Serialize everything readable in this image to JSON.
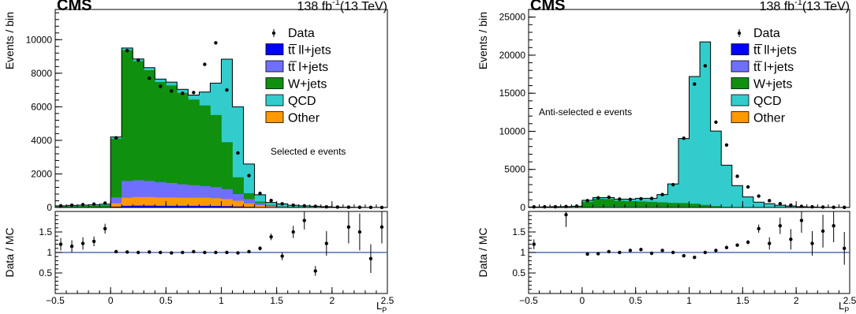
{
  "colors": {
    "tt_ll_jets": "#0000ff",
    "tt_l_jets": "#6f6fff",
    "w_jets": "#0f900f",
    "qcd": "#33cccc",
    "other": "#ff9900",
    "data": "#000000",
    "ratio_line": "#3050a0"
  },
  "chart_data": [
    {
      "type": "bar",
      "stacked": true,
      "experiment": "CMS",
      "lumi_label": "138 fb",
      "lumi_superscript": "-1",
      "energy_label": "(13 TeV)",
      "annotation": "Selected e events",
      "annotation_position": "right-middle",
      "xlabel": "L_P",
      "ylabel": "Events / bin",
      "ratio_ylabel": "Data / MC",
      "legend_position": "top-right",
      "legend": [
        "Data",
        "tt̅ ll+jets",
        "tt̅ l+jets",
        "W+jets",
        "QCD",
        "Other"
      ],
      "xlim": [
        -0.5,
        2.5
      ],
      "ylim": [
        0,
        11800
      ],
      "ratio_ylim": [
        0,
        2.0
      ],
      "x_ticks": [
        "−0.5",
        "0",
        "0.5",
        "1",
        "1.5",
        "2",
        "2.5"
      ],
      "x_tick_values": [
        -0.5,
        0,
        0.5,
        1,
        1.5,
        2,
        2.5
      ],
      "y_ticks": [
        "0",
        "2000",
        "4000",
        "6000",
        "8000",
        "10000"
      ],
      "y_tick_values": [
        0,
        2000,
        4000,
        6000,
        8000,
        10000
      ],
      "ratio_ticks": [
        "0.5",
        "1",
        "1.5"
      ],
      "ratio_tick_values": [
        0.5,
        1,
        1.5
      ],
      "bin_edges": [
        -0.5,
        -0.4,
        -0.3,
        -0.2,
        -0.1,
        0,
        0.1,
        0.2,
        0.3,
        0.4,
        0.5,
        0.6,
        0.7,
        0.8,
        0.9,
        1.0,
        1.1,
        1.2,
        1.3,
        1.4,
        1.5,
        1.6,
        1.7,
        1.8,
        1.9,
        2.0,
        2.1,
        2.2,
        2.3,
        2.4,
        2.5
      ],
      "series": [
        {
          "name": "tt̅ ll+jets",
          "color_key": "tt_ll_jets",
          "values": [
            0,
            0,
            0,
            0,
            0,
            50,
            100,
            110,
            110,
            100,
            100,
            100,
            100,
            100,
            90,
            80,
            60,
            40,
            20,
            10,
            5,
            3,
            2,
            1,
            1,
            0,
            0,
            0,
            0,
            0
          ]
        },
        {
          "name": "Other",
          "color_key": "other",
          "values": [
            0,
            0,
            0,
            0,
            0,
            200,
            480,
            510,
            510,
            500,
            500,
            480,
            480,
            480,
            460,
            420,
            340,
            200,
            120,
            60,
            30,
            15,
            10,
            8,
            5,
            3,
            2,
            1,
            1,
            0
          ]
        },
        {
          "name": "tt̅ l+jets",
          "color_key": "tt_l_jets",
          "values": [
            0,
            0,
            0,
            0,
            0,
            350,
            1000,
            1000,
            960,
            910,
            860,
            800,
            750,
            700,
            660,
            590,
            400,
            260,
            120,
            50,
            20,
            8,
            4,
            2,
            1,
            0,
            0,
            0,
            0,
            0
          ]
        },
        {
          "name": "W+jets",
          "color_key": "w_jets",
          "values": [
            60,
            80,
            80,
            100,
            130,
            3500,
            7800,
            7100,
            6600,
            5970,
            5810,
            5450,
            5100,
            4800,
            4300,
            2800,
            1000,
            350,
            90,
            30,
            15,
            8,
            5,
            3,
            2,
            1,
            1,
            0,
            0,
            0
          ]
        },
        {
          "name": "QCD",
          "color_key": "qcd",
          "values": [
            40,
            50,
            60,
            60,
            70,
            100,
            120,
            130,
            150,
            170,
            200,
            210,
            270,
            800,
            1900,
            4950,
            4200,
            1740,
            410,
            150,
            150,
            100,
            80,
            60,
            40,
            20,
            15,
            8,
            5,
            3
          ]
        }
      ],
      "data": {
        "name": "Data",
        "x": [
          -0.45,
          -0.35,
          -0.25,
          -0.15,
          -0.05,
          0.05,
          0.15,
          0.25,
          0.35,
          0.45,
          0.55,
          0.65,
          0.75,
          0.85,
          0.95,
          1.05,
          1.15,
          1.25,
          1.35,
          1.45,
          1.55,
          1.65,
          1.75,
          1.85,
          1.95,
          2.05,
          2.15,
          2.25,
          2.35,
          2.45
        ],
        "values": [
          100,
          140,
          170,
          200,
          260,
          4150,
          9350,
          8780,
          7700,
          7220,
          6940,
          6800,
          6850,
          8530,
          9810,
          7000,
          3250,
          1900,
          840,
          420,
          220,
          140,
          100,
          70,
          40,
          25,
          20,
          12,
          8,
          4
        ]
      },
      "ratio": {
        "x": [
          -0.45,
          -0.35,
          -0.25,
          -0.15,
          -0.05,
          0.05,
          0.15,
          0.25,
          0.35,
          0.45,
          0.55,
          0.65,
          0.75,
          0.85,
          0.95,
          1.05,
          1.15,
          1.25,
          1.35,
          1.45,
          1.55,
          1.65,
          1.75,
          1.85,
          1.95,
          2.15,
          2.25,
          2.35,
          2.45
        ],
        "values": [
          1.2,
          1.15,
          1.22,
          1.27,
          1.58,
          1.02,
          1.01,
          1.0,
          1.01,
          1.0,
          0.99,
          1.0,
          1.02,
          1.0,
          1.0,
          1.0,
          0.99,
          1.02,
          1.1,
          1.38,
          0.91,
          1.5,
          1.78,
          0.55,
          1.22,
          1.62,
          1.5,
          0.85,
          1.62
        ],
        "errors": [
          0.15,
          0.15,
          0.15,
          0.12,
          0.12,
          0.02,
          0.01,
          0.01,
          0.01,
          0.01,
          0.01,
          0.01,
          0.01,
          0.01,
          0.01,
          0.01,
          0.02,
          0.03,
          0.05,
          0.08,
          0.1,
          0.15,
          0.22,
          0.12,
          0.3,
          0.4,
          0.45,
          0.35,
          0.4
        ]
      }
    },
    {
      "type": "bar",
      "stacked": true,
      "experiment": "CMS",
      "lumi_label": "138 fb",
      "lumi_superscript": "-1",
      "energy_label": "(13 TeV)",
      "annotation": "Anti-selected e events",
      "annotation_position": "left-middle",
      "xlabel": "L_P",
      "ylabel": "Events / bin",
      "ratio_ylabel": "Data / MC",
      "legend_position": "top-right",
      "legend": [
        "Data",
        "tt̅ ll+jets",
        "tt̅ l+jets",
        "W+jets",
        "QCD",
        "Other"
      ],
      "xlim": [
        -0.5,
        2.5
      ],
      "ylim": [
        0,
        26000
      ],
      "ratio_ylim": [
        0,
        2.0
      ],
      "x_ticks": [
        "−0.5",
        "0",
        "0.5",
        "1",
        "1.5",
        "2",
        "2.5"
      ],
      "x_tick_values": [
        -0.5,
        0,
        0.5,
        1,
        1.5,
        2,
        2.5
      ],
      "y_ticks": [
        "0",
        "5000",
        "10000",
        "15000",
        "20000",
        "25000"
      ],
      "y_tick_values": [
        0,
        5000,
        10000,
        15000,
        20000,
        25000
      ],
      "ratio_ticks": [
        "0.5",
        "1",
        "1.5"
      ],
      "ratio_tick_values": [
        0.5,
        1,
        1.5
      ],
      "bin_edges": [
        -0.5,
        -0.4,
        -0.3,
        -0.2,
        -0.1,
        0,
        0.1,
        0.2,
        0.3,
        0.4,
        0.5,
        0.6,
        0.7,
        0.8,
        0.9,
        1.0,
        1.1,
        1.2,
        1.3,
        1.4,
        1.5,
        1.6,
        1.7,
        1.8,
        1.9,
        2.0,
        2.1,
        2.2,
        2.3,
        2.4,
        2.5
      ],
      "series": [
        {
          "name": "tt̅ ll+jets",
          "color_key": "tt_ll_jets",
          "values": [
            0,
            0,
            0,
            0,
            0,
            2,
            5,
            5,
            5,
            5,
            5,
            5,
            5,
            5,
            5,
            5,
            5,
            3,
            2,
            1,
            0,
            0,
            0,
            0,
            0,
            0,
            0,
            0,
            0,
            0
          ]
        },
        {
          "name": "Other",
          "color_key": "other",
          "values": [
            0,
            0,
            0,
            0,
            0,
            10,
            25,
            30,
            30,
            30,
            30,
            30,
            30,
            30,
            30,
            30,
            30,
            20,
            10,
            5,
            2,
            1,
            0,
            0,
            0,
            0,
            0,
            0,
            0,
            0
          ]
        },
        {
          "name": "tt̅ l+jets",
          "color_key": "tt_l_jets",
          "values": [
            0,
            0,
            0,
            0,
            0,
            20,
            60,
            60,
            60,
            60,
            60,
            55,
            50,
            50,
            50,
            45,
            40,
            25,
            10,
            5,
            2,
            1,
            0,
            0,
            0,
            0,
            0,
            0,
            0,
            0
          ]
        },
        {
          "name": "W+jets",
          "color_key": "w_jets",
          "values": [
            20,
            20,
            30,
            40,
            60,
            700,
            1050,
            1010,
            780,
            730,
            700,
            650,
            590,
            520,
            500,
            420,
            260,
            120,
            60,
            20,
            10,
            5,
            3,
            2,
            1,
            0,
            0,
            0,
            0,
            0
          ]
        },
        {
          "name": "QCD",
          "color_key": "qcd",
          "values": [
            50,
            60,
            70,
            80,
            110,
            218,
            160,
            195,
            225,
            275,
            405,
            460,
            1025,
            2495,
            8465,
            16695,
            21405,
            9867,
            5478,
            2839,
            1366,
            693,
            497,
            298,
            199,
            100,
            60,
            40,
            20,
            10
          ]
        }
      ],
      "data": {
        "name": "Data",
        "x": [
          -0.45,
          -0.35,
          -0.25,
          -0.15,
          -0.05,
          0.05,
          0.15,
          0.25,
          0.35,
          0.45,
          0.55,
          0.65,
          0.75,
          0.85,
          0.95,
          1.05,
          1.15,
          1.25,
          1.35,
          1.45,
          1.55,
          1.65,
          1.75,
          1.85,
          1.95,
          2.05,
          2.15,
          2.25,
          2.35,
          2.45
        ],
        "values": [
          80,
          90,
          100,
          120,
          180,
          900,
          1260,
          1350,
          1100,
          1060,
          1150,
          1180,
          1700,
          3000,
          9100,
          16200,
          18600,
          11200,
          8200,
          4100,
          2700,
          1500,
          900,
          500,
          300,
          150,
          90,
          60,
          35,
          15
        ]
      },
      "ratio": {
        "x": [
          -0.45,
          -0.15,
          0.05,
          0.15,
          0.25,
          0.35,
          0.45,
          0.55,
          0.65,
          0.75,
          0.85,
          0.95,
          1.05,
          1.15,
          1.25,
          1.35,
          1.45,
          1.55,
          1.65,
          1.75,
          1.85,
          1.95,
          2.05,
          2.15,
          2.25,
          2.35,
          2.45
        ],
        "values": [
          1.2,
          1.92,
          0.96,
          0.97,
          1.02,
          1.0,
          1.05,
          1.07,
          0.98,
          1.05,
          1.0,
          0.92,
          0.88,
          1.0,
          1.05,
          1.12,
          1.18,
          1.25,
          1.58,
          1.22,
          1.65,
          1.32,
          1.78,
          1.22,
          1.52,
          1.65,
          1.1
        ],
        "errors": [
          0.12,
          0.3,
          0.03,
          0.03,
          0.03,
          0.03,
          0.04,
          0.04,
          0.04,
          0.03,
          0.02,
          0.01,
          0.01,
          0.01,
          0.01,
          0.02,
          0.03,
          0.05,
          0.1,
          0.15,
          0.2,
          0.25,
          0.3,
          0.3,
          0.4,
          0.4,
          0.4
        ]
      }
    }
  ]
}
